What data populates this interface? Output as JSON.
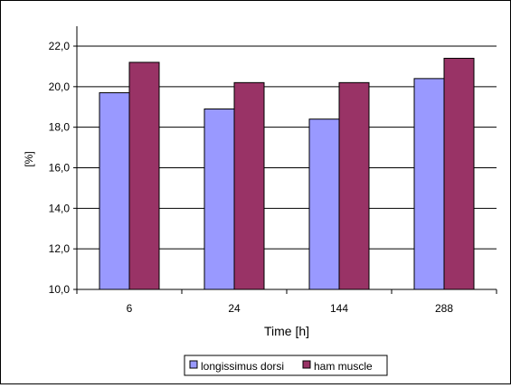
{
  "chart_data": {
    "type": "bar",
    "title": "",
    "xlabel": "Time [h]",
    "ylabel": "[%]",
    "categories": [
      "6",
      "24",
      "144",
      "288"
    ],
    "series": [
      {
        "name": "longissimus dorsi",
        "color": "#9999ff",
        "values": [
          19.7,
          18.9,
          18.4,
          20.4
        ]
      },
      {
        "name": "ham muscle",
        "color": "#993366",
        "values": [
          21.2,
          20.2,
          20.2,
          21.4
        ]
      }
    ],
    "ylim": [
      10.0,
      23.0
    ],
    "yticks": [
      "10,0",
      "12,0",
      "14,0",
      "16,0",
      "18,0",
      "20,0",
      "22,0"
    ],
    "grid": true,
    "legend_position": "bottom-center"
  }
}
